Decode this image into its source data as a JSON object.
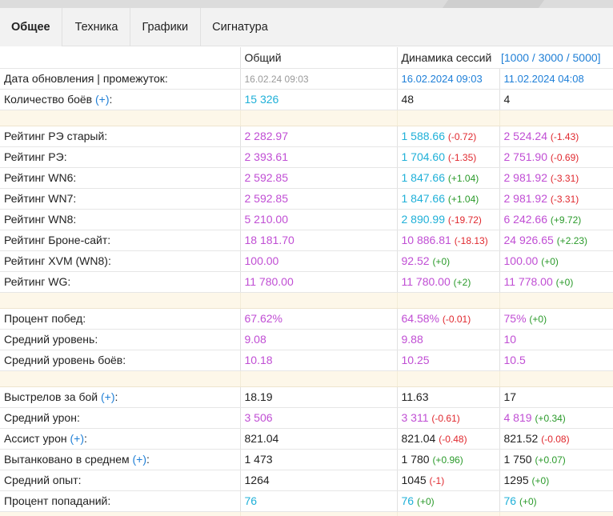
{
  "tabs": [
    {
      "label": "Общее",
      "active": true
    },
    {
      "label": "Техника",
      "active": false
    },
    {
      "label": "Графики",
      "active": false
    },
    {
      "label": "Сигнатура",
      "active": false
    }
  ],
  "header": {
    "col1": "Общий",
    "col2": "Динамика сессий",
    "col3": "[1000 / 3000 / 5000]"
  },
  "rows": {
    "updated": {
      "label": "Дата обновления | промежуток:",
      "v1": "16.02.24 09:03",
      "v2": "16.02.2024 09:03",
      "v3": "11.02.2024 04:08"
    },
    "battles": {
      "label": "Количество боёв",
      "plus": "(+)",
      "v1": "15 326",
      "v2": "48",
      "v3": "4"
    },
    "re_old": {
      "label": "Рейтинг РЭ старый:",
      "v1": "2 282.97",
      "v2": "1 588.66",
      "d2": "(-0.72)",
      "v3": "2 524.24",
      "d3": "(-1.43)"
    },
    "re": {
      "label": "Рейтинг РЭ:",
      "v1": "2 393.61",
      "v2": "1 704.60",
      "d2": "(-1.35)",
      "v3": "2 751.90",
      "d3": "(-0.69)"
    },
    "wn6": {
      "label": "Рейтинг WN6:",
      "v1": "2 592.85",
      "v2": "1 847.66",
      "d2": "(+1.04)",
      "v3": "2 981.92",
      "d3": "(-3.31)"
    },
    "wn7": {
      "label": "Рейтинг WN7:",
      "v1": "2 592.85",
      "v2": "1 847.66",
      "d2": "(+1.04)",
      "v3": "2 981.92",
      "d3": "(-3.31)"
    },
    "wn8": {
      "label": "Рейтинг WN8:",
      "v1": "5 210.00",
      "v2": "2 890.99",
      "d2": "(-19.72)",
      "v3": "6 242.66",
      "d3": "(+9.72)"
    },
    "bs": {
      "label": "Рейтинг Броне-сайт:",
      "v1": "18 181.70",
      "v2": "10 886.81",
      "d2": "(-18.13)",
      "v3": "24 926.65",
      "d3": "(+2.23)"
    },
    "xvm": {
      "label": "Рейтинг XVM (WN8):",
      "v1": "100.00",
      "v2": "92.52",
      "d2": "(+0)",
      "v3": "100.00",
      "d3": "(+0)"
    },
    "wg": {
      "label": "Рейтинг WG:",
      "v1": "11 780.00",
      "v2": "11 780.00",
      "d2": "(+2)",
      "v3": "11 778.00",
      "d3": "(+0)"
    },
    "winrate": {
      "label": "Процент побед:",
      "v1": "67.62%",
      "v2": "64.58%",
      "d2": "(-0.01)",
      "v3": "75%",
      "d3": "(+0)"
    },
    "avg_tier": {
      "label": "Средний уровень:",
      "v1": "9.08",
      "v2": "9.88",
      "v3": "10"
    },
    "avg_battle_tier": {
      "label": "Средний уровень боёв:",
      "v1": "10.18",
      "v2": "10.25",
      "v3": "10.5"
    },
    "shots": {
      "label": "Выстрелов за бой",
      "plus": "(+)",
      "v1": "18.19",
      "v2": "11.63",
      "v3": "17"
    },
    "dmg": {
      "label": "Средний урон:",
      "v1": "3 506",
      "v2": "3 311",
      "d2": "(-0.61)",
      "v3": "4 819",
      "d3": "(+0.34)"
    },
    "assist": {
      "label": "Ассист урон",
      "plus": "(+)",
      "v1": "821.04",
      "v2": "821.04",
      "d2": "(-0.48)",
      "v3": "821.52",
      "d3": "(-0.08)"
    },
    "tanked": {
      "label": "Вытанковано в среднем",
      "plus": "(+)",
      "v1": "1 473",
      "v2": "1 780",
      "d2": "(+0.96)",
      "v3": "1 750",
      "d3": "(+0.07)"
    },
    "xp": {
      "label": "Средний опыт:",
      "v1": "1264",
      "v2": "1045",
      "d2": "(-1)",
      "v3": "1295",
      "d3": "(+0)"
    },
    "hitrate": {
      "label": "Процент попаданий:",
      "v1": "76",
      "v2": "76",
      "d2": "(+0)",
      "v3": "76",
      "d3": "(+0)"
    }
  },
  "colors": {
    "purple": "#c04ed4",
    "cyan": "#1fb0d8",
    "blue": "#1e7fd8",
    "negative": "#e0282e",
    "positive": "#2a9a2a",
    "separator": "#fdf7e9"
  }
}
